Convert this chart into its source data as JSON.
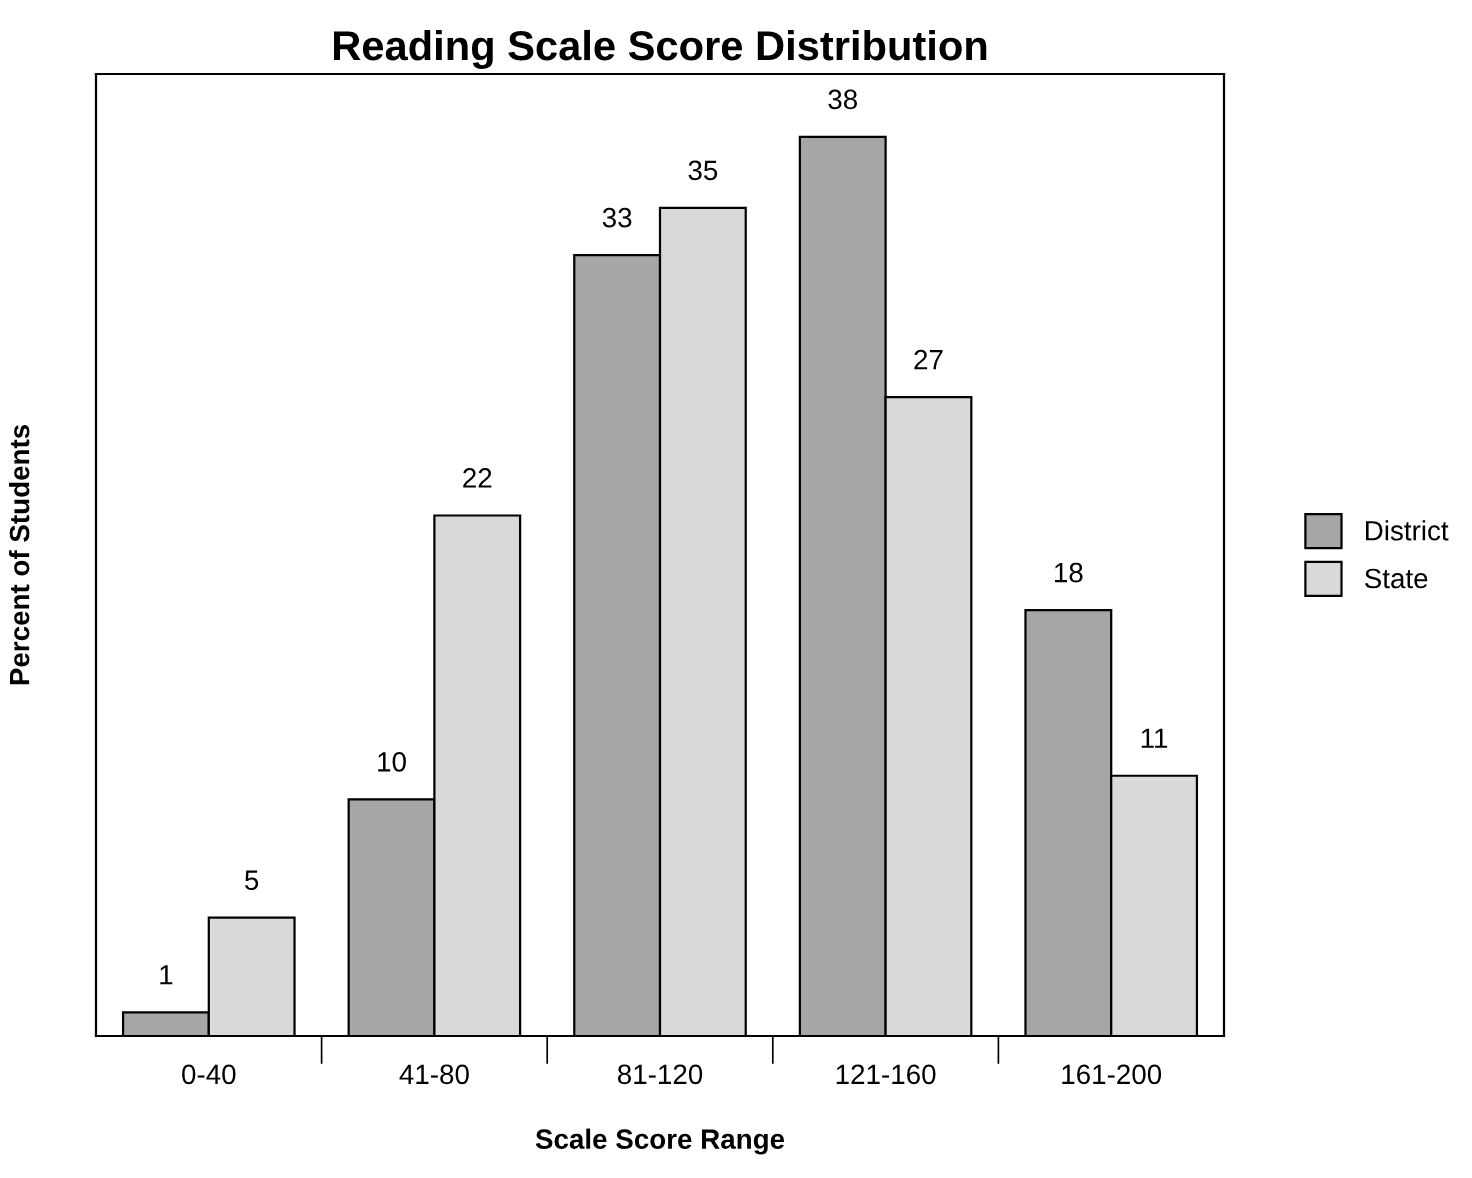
{
  "chart_data": {
    "type": "bar",
    "title": "Reading Scale Score Distribution",
    "xlabel": "Scale Score Range",
    "ylabel": "Percent of Students",
    "categories": [
      "0-40",
      "41-80",
      "81-120",
      "121-160",
      "161-200"
    ],
    "series": [
      {
        "name": "District",
        "color": "#a6a6a6",
        "values": [
          1,
          10,
          33,
          38,
          18
        ]
      },
      {
        "name": "State",
        "color": "#d9d9d9",
        "values": [
          5,
          22,
          35,
          27,
          11
        ]
      }
    ],
    "data_labels": true,
    "legend": "right",
    "grid": false
  }
}
